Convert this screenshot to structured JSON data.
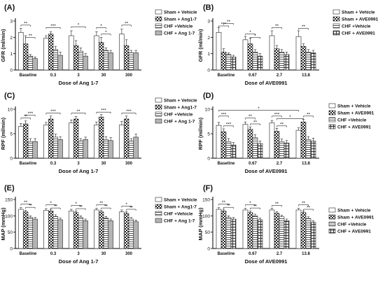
{
  "patterns": {
    "white": "#ffffff",
    "solid_dark": "#9a9a9a",
    "grey": "#b4b4b4"
  },
  "chart_data": [
    {
      "panel": "(A)",
      "type": "bar",
      "xlabel": "Dose of Ang 1-7",
      "ylabel": "GFR (ml/min)",
      "ylim": [
        0,
        3
      ],
      "yticks": [
        0,
        1,
        2,
        3
      ],
      "categories": [
        "Baseline",
        "0.3",
        "3",
        "30",
        "300"
      ],
      "legend": [
        "Sham + Vehicle",
        "Sham + Ang1-7",
        "CHF +Vehicle",
        "CHF + Ang 1-7"
      ],
      "series": [
        {
          "values": [
            2.3,
            1.95,
            2.1,
            2.1,
            2.2
          ],
          "errors": [
            0.25,
            0.15,
            0.3,
            0.25,
            0.3
          ]
        },
        {
          "values": [
            1.6,
            2.2,
            1.5,
            1.7,
            1.5
          ],
          "errors": [
            0.5,
            0.15,
            0.3,
            0.3,
            0.35
          ]
        },
        {
          "values": [
            0.85,
            1.25,
            1.15,
            1.2,
            1.05
          ],
          "errors": [
            0.1,
            0.2,
            0.2,
            0.15,
            0.15
          ]
        },
        {
          "values": [
            0.7,
            0.9,
            0.85,
            1.05,
            1.05
          ],
          "errors": [
            0.1,
            0.2,
            0.15,
            0.15,
            0.15
          ]
        }
      ],
      "sig": [
        {
          "cat": 0,
          "a": 0,
          "b": 2,
          "y": 2.75,
          "label": "**"
        },
        {
          "cat": 0,
          "a": 1,
          "b": 3,
          "y": 2.0,
          "label": "**"
        },
        {
          "cat": 1,
          "a": 0,
          "b": 3,
          "y": 2.6,
          "label": "***"
        },
        {
          "cat": 2,
          "a": 0,
          "b": 3,
          "y": 2.65,
          "label": "*"
        },
        {
          "cat": 3,
          "a": 0,
          "b": 2,
          "y": 2.6,
          "label": "*"
        },
        {
          "cat": 3,
          "a": 1,
          "b": 3,
          "y": 2.2,
          "label": "*"
        },
        {
          "cat": 4,
          "a": 0,
          "b": 2,
          "y": 2.75,
          "label": "**"
        }
      ]
    },
    {
      "panel": "(B)",
      "type": "bar",
      "xlabel": "Dose of AVE0991",
      "ylabel": "GFR (ml/min)",
      "ylim": [
        0,
        3
      ],
      "yticks": [
        0,
        1,
        2,
        3
      ],
      "categories": [
        "Baseline",
        "0.67",
        "2.7",
        "13.8"
      ],
      "legend": [
        "Sham + Vehicle",
        "Sham + AVE0991",
        "CHF +Vehicle",
        "CHF + AVE0991"
      ],
      "series": [
        {
          "values": [
            2.3,
            1.85,
            2.1,
            2.05
          ],
          "errors": [
            0.3,
            0.2,
            0.3,
            0.35
          ]
        },
        {
          "values": [
            1.1,
            1.6,
            1.3,
            1.45
          ],
          "errors": [
            0.2,
            0.35,
            0.2,
            0.15
          ]
        },
        {
          "values": [
            0.95,
            1.1,
            1.1,
            1.1
          ],
          "errors": [
            0.1,
            0.15,
            0.15,
            0.15
          ]
        },
        {
          "values": [
            0.8,
            0.85,
            0.95,
            1.05
          ],
          "errors": [
            0.1,
            0.15,
            0.15,
            0.15
          ]
        }
      ],
      "sig": [
        {
          "cat": 0,
          "a": 0,
          "b": 2,
          "y": 2.7,
          "label": "***"
        },
        {
          "cat": 0,
          "a": 1,
          "b": 3,
          "y": 2.85,
          "label": "**"
        },
        {
          "cat": 1,
          "a": 0,
          "b": 2,
          "y": 2.2,
          "label": "*"
        },
        {
          "cat": 1,
          "a": 1,
          "b": 3,
          "y": 2.0,
          "label": "*"
        },
        {
          "cat": 2,
          "a": 0,
          "b": 2,
          "y": 2.6,
          "label": "**"
        },
        {
          "cat": 3,
          "a": 0,
          "b": 2,
          "y": 2.55,
          "label": "**"
        }
      ]
    },
    {
      "panel": "(C)",
      "type": "bar",
      "xlabel": "Dose of Ang 1-7",
      "ylabel": "RPF (ml/min)",
      "ylim": [
        0,
        10
      ],
      "yticks": [
        0,
        5,
        10
      ],
      "categories": [
        "Baseline",
        "0.3",
        "3",
        "30",
        "300"
      ],
      "legend": [
        "Sham + Vehicle",
        "Sham + Ang1-7",
        "CHF +Vehicle",
        "CHF + Ang 1-7"
      ],
      "series": [
        {
          "values": [
            6.5,
            6.8,
            7.2,
            6.8,
            6.8
          ],
          "errors": [
            0.6,
            0.5,
            0.6,
            0.6,
            0.7
          ]
        },
        {
          "values": [
            7.0,
            8.0,
            8.0,
            8.4,
            8.0
          ],
          "errors": [
            0.6,
            0.6,
            0.5,
            0.5,
            0.6
          ]
        },
        {
          "values": [
            3.4,
            4.3,
            3.5,
            3.8,
            3.5
          ],
          "errors": [
            0.6,
            0.6,
            0.5,
            0.6,
            0.5
          ]
        },
        {
          "values": [
            3.4,
            3.8,
            3.8,
            3.6,
            4.3
          ],
          "errors": [
            0.6,
            0.6,
            0.5,
            0.6,
            0.6
          ]
        }
      ],
      "sig": [
        {
          "cat": 0,
          "a": 0,
          "b": 2,
          "y": 8.2,
          "label": "**"
        },
        {
          "cat": 0,
          "a": 1,
          "b": 3,
          "y": 8.8,
          "label": "***"
        },
        {
          "cat": 1,
          "a": 0,
          "b": 3,
          "y": 9.2,
          "label": "***"
        },
        {
          "cat": 2,
          "a": 0,
          "b": 3,
          "y": 9.2,
          "label": "**"
        },
        {
          "cat": 3,
          "a": 0,
          "b": 3,
          "y": 9.4,
          "label": "***"
        },
        {
          "cat": 4,
          "a": 0,
          "b": 3,
          "y": 9.2,
          "label": "***"
        }
      ]
    },
    {
      "panel": "(D)",
      "type": "bar",
      "xlabel": "Dose of AVE0991",
      "ylabel": "RPF (ml/min)",
      "ylim": [
        0,
        10
      ],
      "yticks": [
        0,
        5,
        10
      ],
      "categories": [
        "Baseline",
        "0.67",
        "2.7",
        "13.8"
      ],
      "legend": [
        "Sham + Vehicle",
        "Sham + AVE0991",
        "CHF +Vehicle",
        "CHF + AVE0991"
      ],
      "series": [
        {
          "values": [
            6.7,
            6.9,
            7.2,
            5.7
          ],
          "errors": [
            0.6,
            0.5,
            0.5,
            0.5
          ]
        },
        {
          "values": [
            5.4,
            5.9,
            5.5,
            7.4
          ],
          "errors": [
            0.6,
            0.5,
            0.6,
            0.5
          ]
        },
        {
          "values": [
            3.4,
            4.2,
            3.4,
            3.8
          ],
          "errors": [
            0.6,
            0.6,
            0.5,
            0.6
          ]
        },
        {
          "values": [
            2.7,
            3.0,
            3.1,
            3.5
          ],
          "errors": [
            0.5,
            0.5,
            0.5,
            0.6
          ]
        }
      ],
      "sig": [
        {
          "cat": 0,
          "a": 0,
          "b": 2,
          "y": 8.6,
          "label": "***"
        },
        {
          "cat": 0,
          "a": 1,
          "b": 3,
          "y": 6.6,
          "label": "***"
        },
        {
          "cat": 1,
          "a": 0,
          "b": 2,
          "y": 8.2,
          "label": "**"
        },
        {
          "cat": 1,
          "a": 1,
          "b": 3,
          "y": 7.0,
          "label": "**"
        },
        {
          "cat": 2,
          "a": 0,
          "b": 2,
          "y": 8.6,
          "label": "***"
        },
        {
          "cat": 2,
          "a": 1,
          "b": 3,
          "y": 6.6,
          "label": "**"
        },
        {
          "cat": 3,
          "a": 1,
          "b": 3,
          "y": 8.6,
          "label": "**"
        }
      ],
      "long_sig": [
        {
          "from": [
            0,
            0
          ],
          "to": [
            3,
            0
          ],
          "y": 9.8,
          "label": "*"
        },
        {
          "from": [
            2,
            1
          ],
          "to": [
            3,
            1
          ],
          "y": 8.1,
          "label": "*"
        }
      ]
    },
    {
      "panel": "(E)",
      "type": "bar",
      "xlabel": "Dose of Ang 1-7",
      "ylabel": "MAP (mmHg)",
      "ylim": [
        0,
        150
      ],
      "yticks": [
        0,
        50,
        100,
        150
      ],
      "categories": [
        "Baseline",
        "0.3",
        "3",
        "30",
        "300"
      ],
      "legend": [
        "Sham + Vehicle",
        "Sham + Ang1-7",
        "CHF +Vehicle",
        "CHF + Ang 1-7"
      ],
      "series": [
        {
          "values": [
            120,
            117,
            115,
            118,
            112
          ],
          "errors": [
            5,
            5,
            5,
            5,
            6
          ]
        },
        {
          "values": [
            112,
            115,
            110,
            112,
            108
          ],
          "errors": [
            5,
            5,
            5,
            5,
            5
          ]
        },
        {
          "values": [
            95,
            98,
            95,
            93,
            90
          ],
          "errors": [
            5,
            5,
            5,
            5,
            5
          ]
        },
        {
          "values": [
            90,
            88,
            85,
            85,
            82
          ],
          "errors": [
            5,
            5,
            5,
            5,
            5
          ]
        }
      ],
      "sig": [
        {
          "cat": 0,
          "a": 0,
          "b": 2,
          "y": 136,
          "label": "**"
        },
        {
          "cat": 0,
          "a": 1,
          "b": 3,
          "y": 126,
          "label": "**"
        },
        {
          "cat": 1,
          "a": 0,
          "b": 2,
          "y": 134,
          "label": "*"
        },
        {
          "cat": 1,
          "a": 1,
          "b": 3,
          "y": 124,
          "label": "**"
        },
        {
          "cat": 2,
          "a": 0,
          "b": 2,
          "y": 132,
          "label": "*"
        },
        {
          "cat": 2,
          "a": 1,
          "b": 3,
          "y": 122,
          "label": "**"
        },
        {
          "cat": 3,
          "a": 0,
          "b": 2,
          "y": 134,
          "label": "**"
        },
        {
          "cat": 3,
          "a": 1,
          "b": 3,
          "y": 124,
          "label": "**"
        },
        {
          "cat": 4,
          "a": 0,
          "b": 2,
          "y": 130,
          "label": "*"
        },
        {
          "cat": 4,
          "a": 1,
          "b": 3,
          "y": 120,
          "label": "**"
        }
      ]
    },
    {
      "panel": "(F)",
      "type": "bar",
      "xlabel": "Dose of AVE0991",
      "ylabel": "MAP (mmHg)",
      "ylim": [
        0,
        150
      ],
      "yticks": [
        0,
        50,
        100,
        150
      ],
      "categories": [
        "Baseline",
        "0.67",
        "2.7",
        "13.8"
      ],
      "legend": [
        "Sham + Vehicle",
        "Sham + AVE0991",
        "CHF +Vehicle",
        "CHF + AVE0991"
      ],
      "series": [
        {
          "values": [
            120,
            118,
            118,
            118
          ],
          "errors": [
            5,
            5,
            5,
            5
          ]
        },
        {
          "values": [
            115,
            110,
            108,
            110
          ],
          "errors": [
            5,
            5,
            5,
            5
          ]
        },
        {
          "values": [
            95,
            100,
            97,
            92
          ],
          "errors": [
            5,
            5,
            5,
            5
          ]
        },
        {
          "values": [
            90,
            88,
            85,
            80
          ],
          "errors": [
            5,
            5,
            5,
            5
          ]
        }
      ],
      "sig": [
        {
          "cat": 0,
          "a": 0,
          "b": 2,
          "y": 136,
          "label": "**"
        },
        {
          "cat": 0,
          "a": 1,
          "b": 3,
          "y": 126,
          "label": "**"
        },
        {
          "cat": 1,
          "a": 0,
          "b": 2,
          "y": 134,
          "label": "*"
        },
        {
          "cat": 1,
          "a": 1,
          "b": 3,
          "y": 124,
          "label": "**"
        },
        {
          "cat": 2,
          "a": 0,
          "b": 2,
          "y": 132,
          "label": "**"
        },
        {
          "cat": 3,
          "a": 0,
          "b": 2,
          "y": 134,
          "label": "**"
        },
        {
          "cat": 3,
          "a": 1,
          "b": 3,
          "y": 120,
          "label": "**"
        }
      ]
    }
  ]
}
